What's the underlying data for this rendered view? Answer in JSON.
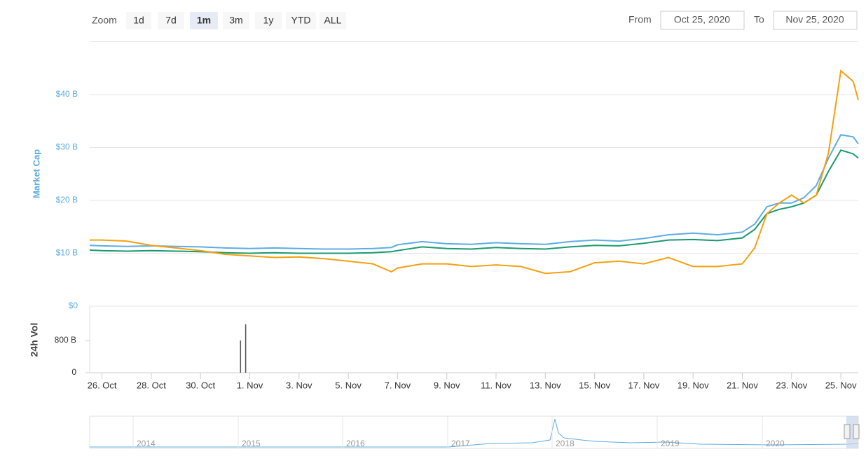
{
  "toolbar": {
    "zoom_label": "Zoom",
    "buttons": [
      "1d",
      "7d",
      "1m",
      "3m",
      "1y",
      "YTD",
      "ALL"
    ],
    "active": "1m",
    "from_label": "From",
    "from": "Oct 25, 2020",
    "to_label": "To",
    "to": "Nov 25, 2020"
  },
  "chart_data": [
    {
      "type": "line",
      "ylabel": "Market Cap",
      "xlim": [
        "2020-10-25T12:00",
        "2020-11-25T17:00"
      ],
      "ylim": [
        0,
        50
      ],
      "yticks": [
        {
          "value": 0,
          "label": "$0"
        },
        {
          "value": 10,
          "label": "$10 B"
        },
        {
          "value": 20,
          "label": "$20 B"
        },
        {
          "value": 30,
          "label": "$30 B"
        },
        {
          "value": 40,
          "label": "$40 B"
        }
      ],
      "xticks": [
        {
          "value": "2020-10-26",
          "label": "26. Oct"
        },
        {
          "value": "2020-10-28",
          "label": "28. Oct"
        },
        {
          "value": "2020-10-30",
          "label": "30. Oct"
        },
        {
          "value": "2020-11-01",
          "label": "1. Nov"
        },
        {
          "value": "2020-11-03",
          "label": "3. Nov"
        },
        {
          "value": "2020-11-05",
          "label": "5. Nov"
        },
        {
          "value": "2020-11-07",
          "label": "7. Nov"
        },
        {
          "value": "2020-11-09",
          "label": "9. Nov"
        },
        {
          "value": "2020-11-11",
          "label": "11. Nov"
        },
        {
          "value": "2020-11-13",
          "label": "13. Nov"
        },
        {
          "value": "2020-11-15",
          "label": "15. Nov"
        },
        {
          "value": "2020-11-17",
          "label": "17. Nov"
        },
        {
          "value": "2020-11-19",
          "label": "19. Nov"
        },
        {
          "value": "2020-11-21",
          "label": "21. Nov"
        },
        {
          "value": "2020-11-23",
          "label": "23. Nov"
        },
        {
          "value": "2020-11-25",
          "label": "25. Nov"
        }
      ],
      "grid": true,
      "x": [
        "2020-10-25T12:00",
        "2020-10-26",
        "2020-10-27",
        "2020-10-28",
        "2020-10-29",
        "2020-10-30",
        "2020-10-31",
        "2020-11-01",
        "2020-11-02",
        "2020-11-03",
        "2020-11-04",
        "2020-11-05",
        "2020-11-06",
        "2020-11-06T18:00",
        "2020-11-07",
        "2020-11-08",
        "2020-11-09",
        "2020-11-10",
        "2020-11-11",
        "2020-11-12",
        "2020-11-13",
        "2020-11-14",
        "2020-11-15",
        "2020-11-16",
        "2020-11-17",
        "2020-11-18",
        "2020-11-19",
        "2020-11-20",
        "2020-11-21",
        "2020-11-21T12:00",
        "2020-11-22",
        "2020-11-22T12:00",
        "2020-11-23",
        "2020-11-23T12:00",
        "2020-11-24",
        "2020-11-24T12:00",
        "2020-11-25",
        "2020-11-25T12:00",
        "2020-11-25T17:00"
      ],
      "series": [
        {
          "color": "#5dade2",
          "values": [
            11.5,
            11.4,
            11.3,
            11.4,
            11.3,
            11.2,
            11.0,
            10.9,
            11.0,
            10.9,
            10.8,
            10.8,
            10.9,
            11.1,
            11.6,
            12.2,
            11.8,
            11.7,
            12.0,
            11.8,
            11.7,
            12.2,
            12.5,
            12.3,
            12.8,
            13.5,
            13.8,
            13.5,
            14.0,
            15.5,
            18.8,
            19.5,
            19.5,
            20.5,
            22.8,
            28.0,
            32.4,
            32.0,
            30.7
          ]
        },
        {
          "color": "#1a9a6f",
          "values": [
            10.6,
            10.5,
            10.4,
            10.5,
            10.4,
            10.3,
            10.1,
            10.0,
            10.1,
            10.0,
            10.0,
            10.0,
            10.1,
            10.3,
            10.5,
            11.2,
            10.9,
            10.8,
            11.1,
            10.9,
            10.8,
            11.2,
            11.5,
            11.4,
            11.9,
            12.5,
            12.6,
            12.4,
            12.9,
            14.5,
            17.5,
            18.3,
            18.8,
            19.5,
            21.0,
            25.5,
            29.5,
            28.8,
            28.0
          ]
        },
        {
          "color": "#f5a00f",
          "values": [
            12.5,
            12.5,
            12.3,
            11.5,
            11.0,
            10.5,
            9.8,
            9.5,
            9.2,
            9.3,
            9.0,
            8.5,
            8.0,
            6.5,
            7.2,
            8.0,
            8.0,
            7.5,
            7.8,
            7.5,
            6.2,
            6.5,
            8.2,
            8.5,
            8.0,
            9.2,
            7.5,
            7.5,
            8.0,
            11.0,
            17.5,
            19.5,
            21.0,
            19.5,
            21.0,
            29.0,
            44.5,
            42.5,
            39.0
          ]
        }
      ]
    },
    {
      "type": "bar",
      "ylabel": "24h Vol",
      "ylim": [
        0,
        1650
      ],
      "yticks": [
        0,
        {
          "value": 800,
          "label": "800 B"
        }
      ],
      "color": "#555555",
      "x": [
        "2020-10-31T15:00",
        "2020-10-31T20:00"
      ],
      "values": [
        800,
        1200
      ]
    }
  ],
  "navigator": {
    "labels": [
      "2014",
      "2015",
      "2016",
      "2017",
      "2018",
      "2019",
      "2020"
    ]
  }
}
